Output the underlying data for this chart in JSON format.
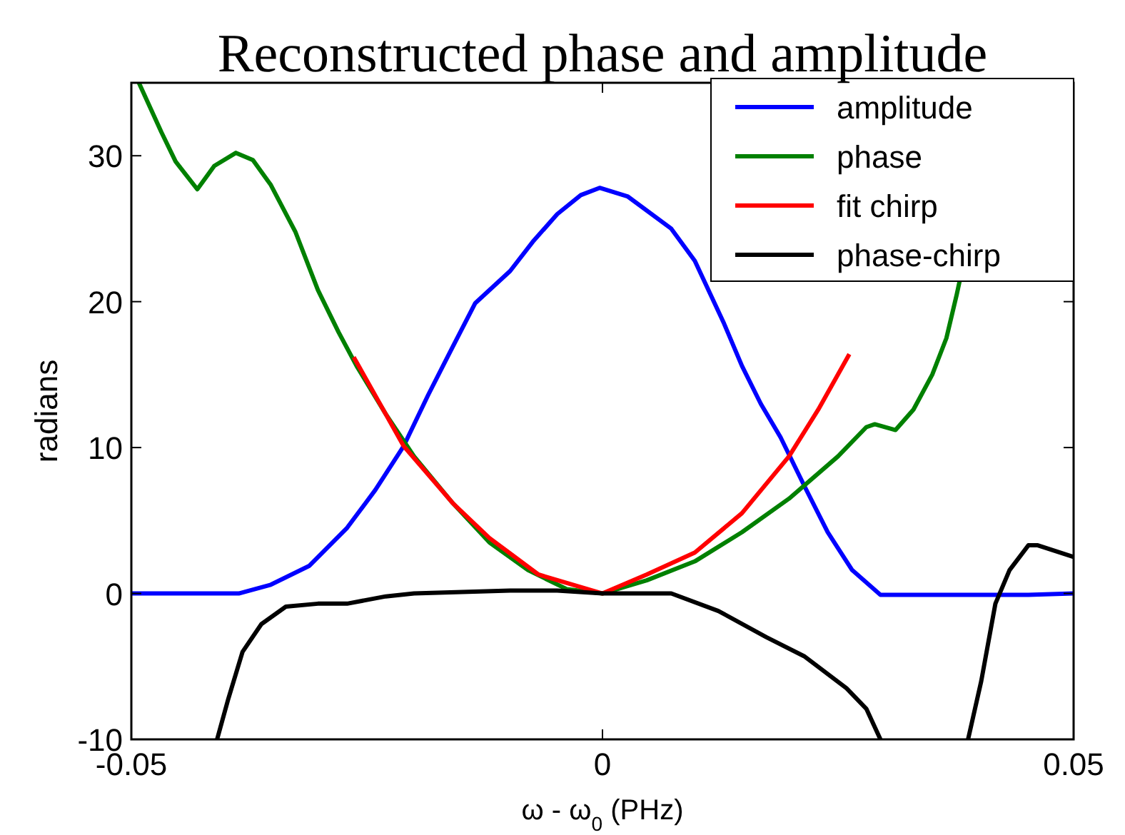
{
  "chart_data": {
    "type": "line",
    "title": "Reconstructed phase and amplitude",
    "xlabel": "ω - ω$_{0}$  (PHz)",
    "ylabel": "radians",
    "xlim": [
      -0.05,
      0.05
    ],
    "xticks": [
      -0.05,
      0,
      0.05
    ],
    "ylim": [
      -10,
      35
    ],
    "yticks": [
      -10,
      0,
      10,
      20,
      30
    ],
    "grid": false,
    "legend": "top right",
    "line_style": "solid",
    "marker": "none",
    "series": [
      {
        "name": "amplitude",
        "color": "#0000ff",
        "x": [
          -0.05,
          -0.0386,
          -0.0352,
          -0.0311,
          -0.0271,
          -0.0241,
          -0.0211,
          -0.0185,
          -0.0159,
          -0.0135,
          -0.0098,
          -0.0074,
          -0.0048,
          -0.0023,
          -0.0003,
          0.0027,
          0.0073,
          0.0098,
          0.0129,
          0.0148,
          0.0168,
          0.0189,
          0.0214,
          0.0239,
          0.0265,
          0.0295,
          0.035,
          0.0452,
          0.05
        ],
        "values": [
          0,
          0,
          0.6,
          1.9,
          4.5,
          7.1,
          10.1,
          13.6,
          16.9,
          19.9,
          22.1,
          24.1,
          26.0,
          27.3,
          27.8,
          27.2,
          25.0,
          22.8,
          18.5,
          15.6,
          13.0,
          10.7,
          7.4,
          4.2,
          1.6,
          -0.1,
          -0.1,
          -0.1,
          0
        ]
      },
      {
        "name": "phase",
        "color": "#008000",
        "x": [
          -0.0492,
          -0.0468,
          -0.0453,
          -0.043,
          -0.0412,
          -0.0389,
          -0.0371,
          -0.0352,
          -0.0326,
          -0.0302,
          -0.028,
          -0.0261,
          -0.023,
          -0.02,
          -0.0159,
          -0.012,
          -0.0079,
          -0.0038,
          0,
          0.0047,
          0.0098,
          0.0148,
          0.0198,
          0.025,
          0.028,
          0.0289,
          0.0311,
          0.033,
          0.035,
          0.0365,
          0.0376,
          0.0379
        ],
        "values": [
          35,
          31.6,
          29.6,
          27.7,
          29.3,
          30.2,
          29.7,
          28.0,
          24.8,
          20.8,
          17.9,
          15.6,
          12.3,
          9.4,
          6.2,
          3.5,
          1.6,
          0.3,
          0,
          0.9,
          2.2,
          4.2,
          6.5,
          9.4,
          11.4,
          11.6,
          11.2,
          12.6,
          15.0,
          17.5,
          20.5,
          21.4
        ]
      },
      {
        "name": "fit chirp",
        "color": "#ff0000",
        "x": [
          -0.0264,
          -0.0211,
          -0.0159,
          -0.012,
          -0.0068,
          0,
          0.0047,
          0.0098,
          0.0148,
          0.0198,
          0.0229,
          0.0262
        ],
        "values": [
          16.2,
          10.1,
          6.2,
          3.8,
          1.3,
          0,
          1.3,
          2.8,
          5.5,
          9.4,
          12.6,
          16.4
        ]
      },
      {
        "name": "phase-chirp",
        "color": "#000000",
        "x": [
          -0.0409,
          -0.0397,
          -0.0382,
          -0.0362,
          -0.0336,
          -0.0302,
          -0.0271,
          -0.023,
          -0.02,
          -0.0098,
          -0.0048,
          0,
          0.0073,
          0.0123,
          0.0174,
          0.0214,
          0.0259,
          0.028,
          0.0295,
          0.035,
          0.0388,
          0.0402,
          0.0417,
          0.0432,
          0.0452,
          0.0462,
          0.05
        ],
        "values": [
          -10,
          -7.2,
          -4.0,
          -2.1,
          -0.9,
          -0.7,
          -0.7,
          -0.2,
          0,
          0.2,
          0.2,
          0,
          0,
          -1.2,
          -3.0,
          -4.3,
          -6.5,
          -7.9,
          -10,
          null,
          -10,
          -6.0,
          -0.7,
          1.6,
          3.3,
          3.3,
          2.5
        ]
      }
    ]
  }
}
